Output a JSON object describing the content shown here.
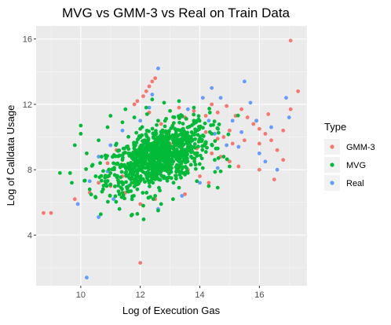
{
  "chart_data": {
    "type": "scatter",
    "title": "MVG vs GMM-3 vs Real on Train Data",
    "xlabel": "Log of Execution Gas",
    "ylabel": "Log of Calldata Usage",
    "xlim": [
      8.5,
      17.6
    ],
    "ylim": [
      0.9,
      16.8
    ],
    "xticks": [
      10,
      12,
      14,
      16
    ],
    "yticks": [
      4,
      8,
      12,
      16
    ],
    "grid": true,
    "legend": {
      "title": "Type",
      "placement": "right"
    },
    "series": [
      {
        "name": "GMM-3",
        "color": "#F8766D",
        "points": [
          [
            8.75,
            5.35
          ],
          [
            9.0,
            5.35
          ],
          [
            9.8,
            6.2
          ],
          [
            10.3,
            6.6
          ],
          [
            10.6,
            7.2
          ],
          [
            11.0,
            7.0
          ],
          [
            11.5,
            6.6
          ],
          [
            12.0,
            2.3
          ],
          [
            11.8,
            12.0
          ],
          [
            11.9,
            12.2
          ],
          [
            12.1,
            12.5
          ],
          [
            12.2,
            12.8
          ],
          [
            12.3,
            13.1
          ],
          [
            12.4,
            13.4
          ],
          [
            12.5,
            13.6
          ],
          [
            12.3,
            11.5
          ],
          [
            13.3,
            11.8
          ],
          [
            13.5,
            11.2
          ],
          [
            13.8,
            11.6
          ],
          [
            14.2,
            11.3
          ],
          [
            14.4,
            12.0
          ],
          [
            14.6,
            11.5
          ],
          [
            14.9,
            11.9
          ],
          [
            15.2,
            11.3
          ],
          [
            15.4,
            11.7
          ],
          [
            15.6,
            11.2
          ],
          [
            15.8,
            10.8
          ],
          [
            16.0,
            10.5
          ],
          [
            16.2,
            10.2
          ],
          [
            16.4,
            9.8
          ],
          [
            16.6,
            9.2
          ],
          [
            16.8,
            8.6
          ],
          [
            16.0,
            9.6
          ],
          [
            15.5,
            9.8
          ],
          [
            15.0,
            10.4
          ],
          [
            14.4,
            9.0
          ],
          [
            14.7,
            8.8
          ],
          [
            15.0,
            8.5
          ],
          [
            15.3,
            8.2
          ],
          [
            16.0,
            8.0
          ],
          [
            16.5,
            7.4
          ],
          [
            13.6,
            8.0
          ],
          [
            14.0,
            7.6
          ],
          [
            14.3,
            7.2
          ],
          [
            13.5,
            6.5
          ],
          [
            12.5,
            6.2
          ],
          [
            12.0,
            5.9
          ],
          [
            11.4,
            7.6
          ],
          [
            13.0,
            9.6
          ],
          [
            12.7,
            10.8
          ],
          [
            13.2,
            10.0
          ],
          [
            14.2,
            10.3
          ],
          [
            14.8,
            10.0
          ],
          [
            15.9,
            11.0
          ],
          [
            16.3,
            11.4
          ],
          [
            16.8,
            10.4
          ],
          [
            17.05,
            11.7
          ],
          [
            17.3,
            12.8
          ],
          [
            17.05,
            15.9
          ],
          [
            10.9,
            8.4
          ],
          [
            11.2,
            9.2
          ],
          [
            13.9,
            9.3
          ],
          [
            14.6,
            9.9
          ],
          [
            15.1,
            9.6
          ]
        ]
      },
      {
        "name": "MVG",
        "color": "#00BA38",
        "points": [
          [
            9.3,
            7.8
          ],
          [
            9.7,
            7.2
          ],
          [
            9.8,
            9.5
          ],
          [
            10.0,
            10.2
          ],
          [
            10.2,
            9.0
          ],
          [
            10.4,
            8.3
          ],
          [
            10.3,
            6.8
          ],
          [
            10.5,
            7.6
          ],
          [
            10.6,
            9.8
          ],
          [
            10.7,
            8.8
          ],
          [
            10.9,
            10.6
          ],
          [
            11.0,
            7.1
          ],
          [
            11.1,
            8.4
          ],
          [
            11.2,
            9.6
          ],
          [
            11.3,
            6.5
          ],
          [
            11.4,
            10.9
          ],
          [
            11.5,
            7.8
          ],
          [
            11.6,
            9.0
          ],
          [
            11.7,
            5.2
          ],
          [
            11.8,
            11.2
          ],
          [
            11.9,
            6.8
          ],
          [
            12.0,
            10.0
          ],
          [
            12.1,
            5.8
          ],
          [
            12.2,
            11.8
          ],
          [
            12.3,
            7.2
          ],
          [
            12.4,
            9.6
          ],
          [
            12.5,
            6.4
          ],
          [
            12.6,
            11.0
          ],
          [
            12.7,
            5.9
          ],
          [
            12.8,
            12.1
          ],
          [
            12.9,
            7.5
          ],
          [
            13.0,
            11.6
          ],
          [
            13.1,
            6.2
          ],
          [
            13.2,
            10.4
          ],
          [
            13.3,
            6.9
          ],
          [
            13.4,
            11.3
          ],
          [
            13.5,
            7.7
          ],
          [
            13.6,
            10.0
          ],
          [
            13.7,
            8.3
          ],
          [
            13.8,
            11.0
          ],
          [
            13.9,
            7.3
          ],
          [
            14.0,
            10.6
          ],
          [
            14.1,
            8.1
          ],
          [
            14.2,
            9.6
          ],
          [
            14.3,
            7.0
          ],
          [
            14.4,
            10.2
          ],
          [
            14.5,
            8.6
          ],
          [
            14.6,
            9.3
          ],
          [
            14.7,
            7.9
          ],
          [
            14.8,
            8.8
          ],
          [
            15.0,
            8.2
          ],
          [
            10.0,
            10.7
          ],
          [
            11.0,
            11.3
          ],
          [
            11.5,
            11.7
          ],
          [
            12.4,
            12.3
          ],
          [
            13.3,
            12.2
          ],
          [
            13.8,
            11.8
          ],
          [
            11.3,
            5.6
          ],
          [
            11.9,
            5.3
          ],
          [
            12.6,
            5.5
          ],
          [
            10.5,
            6.3
          ],
          [
            14.6,
            6.9
          ],
          [
            12.0,
            7.5
          ],
          [
            12.2,
            8.4
          ],
          [
            12.4,
            8.0
          ],
          [
            12.6,
            9.0
          ],
          [
            12.8,
            8.6
          ],
          [
            12.3,
            9.2
          ],
          [
            12.5,
            8.3
          ],
          [
            12.7,
            9.4
          ],
          [
            12.1,
            8.9
          ],
          [
            12.9,
            8.1
          ],
          [
            11.6,
            8.2
          ],
          [
            13.1,
            8.8
          ],
          [
            11.8,
            9.4
          ],
          [
            13.2,
            9.1
          ],
          [
            11.4,
            8.6
          ],
          [
            13.4,
            8.5
          ],
          [
            12.0,
            10.5
          ],
          [
            12.8,
            10.3
          ]
        ]
      },
      {
        "name": "Real",
        "color": "#619CFF",
        "points": [
          [
            10.2,
            1.4
          ],
          [
            9.9,
            5.9
          ],
          [
            10.6,
            5.1
          ],
          [
            10.3,
            7.3
          ],
          [
            10.6,
            8.8
          ],
          [
            11.0,
            9.5
          ],
          [
            11.4,
            10.4
          ],
          [
            12.0,
            11.0
          ],
          [
            12.3,
            11.8
          ],
          [
            12.6,
            14.2
          ],
          [
            12.4,
            12.6
          ],
          [
            13.6,
            11.7
          ],
          [
            14.1,
            12.4
          ],
          [
            14.3,
            11.0
          ],
          [
            14.5,
            10.2
          ],
          [
            14.7,
            12.4
          ],
          [
            14.9,
            9.5
          ],
          [
            15.1,
            11.0
          ],
          [
            15.4,
            10.3
          ],
          [
            15.5,
            13.4
          ],
          [
            15.7,
            12.1
          ],
          [
            15.9,
            11.0
          ],
          [
            16.0,
            9.0
          ],
          [
            16.2,
            8.5
          ],
          [
            16.4,
            10.6
          ],
          [
            16.6,
            8.0
          ],
          [
            16.9,
            12.4
          ],
          [
            17.0,
            11.2
          ],
          [
            14.6,
            8.1
          ],
          [
            14.0,
            7.2
          ],
          [
            13.4,
            6.4
          ],
          [
            12.6,
            5.6
          ],
          [
            12.9,
            8.9
          ],
          [
            13.8,
            9.4
          ],
          [
            11.6,
            7.0
          ],
          [
            11.1,
            6.2
          ],
          [
            10.9,
            7.9
          ],
          [
            15.3,
            9.4
          ],
          [
            14.4,
            13.0
          ]
        ]
      }
    ]
  }
}
